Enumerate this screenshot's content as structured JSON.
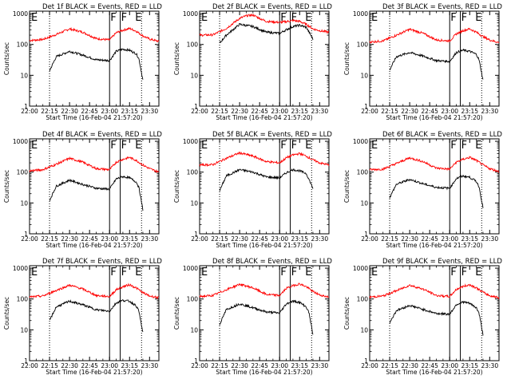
{
  "chart_data": [
    {
      "panel": 1,
      "type": "line",
      "title": "Det 1f BLACK = Events, RED = LLD",
      "xlabel": "Start Time (16-Feb-04 21:57:20)",
      "ylabel": "Counts/sec",
      "yscale": "log",
      "ylim": [
        1,
        1200
      ],
      "xlim": [
        "22:00",
        "23:37"
      ],
      "x_ticks": [
        "22:00",
        "22:15",
        "22:30",
        "22:45",
        "23:00",
        "23:15",
        "23:30"
      ],
      "y_ticks": [
        "1",
        "10",
        "100",
        "1000"
      ],
      "flags": [
        "E",
        "F",
        "F",
        "E"
      ],
      "series": [
        {
          "name": "LLD",
          "color": "#ff0000",
          "x": [
            "22:00",
            "22:10",
            "22:20",
            "22:30",
            "22:40",
            "22:50",
            "23:00",
            "23:05",
            "23:10",
            "23:15",
            "23:20",
            "23:25",
            "23:30",
            "23:37"
          ],
          "values": [
            135,
            145,
            210,
            320,
            250,
            155,
            140,
            240,
            290,
            330,
            270,
            190,
            150,
            125
          ]
        },
        {
          "name": "Events",
          "color": "#000000",
          "x": [
            "22:15",
            "22:20",
            "22:30",
            "22:40",
            "22:50",
            "23:00",
            "23:05",
            "23:10",
            "23:15",
            "23:20",
            "23:22",
            "23:25"
          ],
          "values": [
            14,
            40,
            60,
            45,
            32,
            30,
            60,
            70,
            65,
            50,
            35,
            7
          ]
        }
      ]
    },
    {
      "panel": 2,
      "type": "line",
      "title": "Det 2f BLACK = Events, RED = LLD",
      "xlabel": "Start Time (16-Feb-04 21:57:20)",
      "ylabel": "Counts/sec",
      "yscale": "log",
      "ylim": [
        1,
        1200
      ],
      "xlim": [
        "22:00",
        "23:37"
      ],
      "x_ticks": [
        "22:00",
        "22:15",
        "22:30",
        "22:45",
        "23:00",
        "23:15",
        "23:30"
      ],
      "y_ticks": [
        "1",
        "10",
        "100",
        "1000"
      ],
      "flags": [
        "E",
        "F",
        "F",
        "E"
      ],
      "series": [
        {
          "name": "LLD",
          "color": "#ff0000",
          "x": [
            "22:00",
            "22:10",
            "22:20",
            "22:30",
            "22:35",
            "22:40",
            "22:45",
            "22:50",
            "23:00",
            "23:05",
            "23:10",
            "23:15",
            "23:20",
            "23:25",
            "23:30",
            "23:37"
          ],
          "values": [
            200,
            205,
            330,
            700,
            850,
            900,
            700,
            560,
            520,
            550,
            600,
            560,
            450,
            320,
            280,
            250
          ]
        },
        {
          "name": "Events",
          "color": "#000000",
          "x": [
            "22:15",
            "22:20",
            "22:30",
            "22:40",
            "22:50",
            "23:00",
            "23:05",
            "23:10",
            "23:15",
            "23:20",
            "23:25"
          ],
          "values": [
            110,
            200,
            450,
            380,
            250,
            230,
            300,
            380,
            420,
            360,
            150
          ]
        }
      ]
    },
    {
      "panel": 3,
      "type": "line",
      "title": "Det 3f BLACK = Events, RED = LLD",
      "xlabel": "Start Time (16-Feb-04 21:57:20)",
      "ylabel": "Counts/sec",
      "yscale": "log",
      "ylim": [
        1,
        1200
      ],
      "xlim": [
        "22:00",
        "23:37"
      ],
      "x_ticks": [
        "22:00",
        "22:15",
        "22:30",
        "22:45",
        "23:00",
        "23:15",
        "23:30"
      ],
      "y_ticks": [
        "1",
        "10",
        "100",
        "1000"
      ],
      "flags": [
        "E",
        "F",
        "F",
        "E"
      ],
      "series": [
        {
          "name": "LLD",
          "color": "#ff0000",
          "x": [
            "22:00",
            "22:10",
            "22:20",
            "22:30",
            "22:40",
            "22:50",
            "23:00",
            "23:05",
            "23:10",
            "23:15",
            "23:20",
            "23:25",
            "23:30",
            "23:37"
          ],
          "values": [
            120,
            130,
            200,
            310,
            230,
            140,
            130,
            220,
            280,
            320,
            250,
            180,
            140,
            115
          ]
        },
        {
          "name": "Events",
          "color": "#000000",
          "x": [
            "22:15",
            "22:20",
            "22:30",
            "22:40",
            "22:50",
            "23:00",
            "23:05",
            "23:10",
            "23:15",
            "23:20",
            "23:22",
            "23:25"
          ],
          "values": [
            15,
            40,
            55,
            42,
            30,
            28,
            55,
            65,
            60,
            48,
            32,
            7
          ]
        }
      ]
    },
    {
      "panel": 4,
      "type": "line",
      "title": "Det 4f BLACK = Events, RED = LLD",
      "xlabel": "Start Time (16-Feb-04 21:57:20)",
      "ylabel": "Counts/sec",
      "yscale": "log",
      "ylim": [
        1,
        1200
      ],
      "xlim": [
        "22:00",
        "23:37"
      ],
      "x_ticks": [
        "22:00",
        "22:15",
        "22:30",
        "22:45",
        "23:00",
        "23:15",
        "23:30"
      ],
      "y_ticks": [
        "1",
        "10",
        "100",
        "1000"
      ],
      "flags": [
        "E",
        "F",
        "F",
        "E"
      ],
      "series": [
        {
          "name": "LLD",
          "color": "#ff0000",
          "x": [
            "22:00",
            "22:10",
            "22:20",
            "22:30",
            "22:40",
            "22:50",
            "23:00",
            "23:05",
            "23:10",
            "23:15",
            "23:20",
            "23:25",
            "23:30",
            "23:37"
          ],
          "values": [
            110,
            120,
            180,
            280,
            210,
            130,
            120,
            210,
            260,
            300,
            240,
            170,
            130,
            100
          ]
        },
        {
          "name": "Events",
          "color": "#000000",
          "x": [
            "22:15",
            "22:20",
            "22:30",
            "22:40",
            "22:50",
            "23:00",
            "23:05",
            "23:10",
            "23:15",
            "23:20",
            "23:22",
            "23:25"
          ],
          "values": [
            12,
            35,
            55,
            40,
            30,
            28,
            60,
            72,
            65,
            48,
            32,
            6
          ]
        }
      ]
    },
    {
      "panel": 5,
      "type": "line",
      "title": "Det 5f BLACK = Events, RED = LLD",
      "xlabel": "Start Time (16-Feb-04 21:57:20)",
      "ylabel": "Counts/sec",
      "yscale": "log",
      "ylim": [
        1,
        1200
      ],
      "xlim": [
        "22:00",
        "23:37"
      ],
      "x_ticks": [
        "22:00",
        "22:15",
        "22:30",
        "22:45",
        "23:00",
        "23:15",
        "23:30"
      ],
      "y_ticks": [
        "1",
        "10",
        "100",
        "1000"
      ],
      "flags": [
        "E",
        "F",
        "F",
        "E"
      ],
      "series": [
        {
          "name": "LLD",
          "color": "#ff0000",
          "x": [
            "22:00",
            "22:10",
            "22:20",
            "22:30",
            "22:40",
            "22:50",
            "23:00",
            "23:05",
            "23:10",
            "23:15",
            "23:20",
            "23:25",
            "23:30",
            "23:37"
          ],
          "values": [
            170,
            175,
            280,
            420,
            330,
            220,
            200,
            290,
            360,
            400,
            330,
            250,
            200,
            170
          ]
        },
        {
          "name": "Events",
          "color": "#000000",
          "x": [
            "22:15",
            "22:20",
            "22:30",
            "22:40",
            "22:50",
            "23:00",
            "23:05",
            "23:10",
            "23:15",
            "23:20",
            "23:25"
          ],
          "values": [
            25,
            75,
            120,
            100,
            70,
            65,
            95,
            120,
            110,
            90,
            30
          ]
        }
      ]
    },
    {
      "panel": 6,
      "type": "line",
      "title": "Det 6f BLACK = Events, RED = LLD",
      "xlabel": "Start Time (16-Feb-04 21:57:20)",
      "ylabel": "Counts/sec",
      "yscale": "log",
      "ylim": [
        1,
        1200
      ],
      "xlim": [
        "22:00",
        "23:37"
      ],
      "x_ticks": [
        "22:00",
        "22:15",
        "22:30",
        "22:45",
        "23:00",
        "23:15",
        "23:30"
      ],
      "y_ticks": [
        "1",
        "10",
        "100",
        "1000"
      ],
      "flags": [
        "E",
        "F",
        "F",
        "E"
      ],
      "series": [
        {
          "name": "LLD",
          "color": "#ff0000",
          "x": [
            "22:00",
            "22:10",
            "22:20",
            "22:30",
            "22:40",
            "22:50",
            "23:00",
            "23:05",
            "23:10",
            "23:15",
            "23:20",
            "23:25",
            "23:30",
            "23:37"
          ],
          "values": [
            120,
            125,
            190,
            290,
            220,
            135,
            125,
            210,
            260,
            300,
            240,
            170,
            130,
            105
          ]
        },
        {
          "name": "Events",
          "color": "#000000",
          "x": [
            "22:15",
            "22:20",
            "22:30",
            "22:40",
            "22:50",
            "23:00",
            "23:05",
            "23:10",
            "23:15",
            "23:20",
            "23:22",
            "23:25"
          ],
          "values": [
            15,
            40,
            58,
            42,
            32,
            30,
            62,
            75,
            68,
            50,
            34,
            7
          ]
        }
      ]
    },
    {
      "panel": 7,
      "type": "line",
      "title": "Det 7f BLACK = Events, RED = LLD",
      "xlabel": "Start Time (16-Feb-04 21:57:20)",
      "ylabel": "Counts/sec",
      "yscale": "log",
      "ylim": [
        1,
        1200
      ],
      "xlim": [
        "22:00",
        "23:37"
      ],
      "x_ticks": [
        "22:00",
        "22:15",
        "22:30",
        "22:45",
        "23:00",
        "23:15",
        "23:30"
      ],
      "y_ticks": [
        "1",
        "10",
        "100",
        "1000"
      ],
      "flags": [
        "E",
        "F",
        "F",
        "E"
      ],
      "series": [
        {
          "name": "LLD",
          "color": "#ff0000",
          "x": [
            "22:00",
            "22:10",
            "22:20",
            "22:30",
            "22:40",
            "22:50",
            "23:00",
            "23:05",
            "23:10",
            "23:15",
            "23:20",
            "23:25",
            "23:30",
            "23:37"
          ],
          "values": [
            115,
            125,
            190,
            280,
            210,
            130,
            120,
            200,
            250,
            290,
            230,
            160,
            125,
            110
          ]
        },
        {
          "name": "Events",
          "color": "#000000",
          "x": [
            "22:15",
            "22:20",
            "22:30",
            "22:40",
            "22:50",
            "23:00",
            "23:05",
            "23:10",
            "23:15",
            "23:20",
            "23:22",
            "23:25"
          ],
          "values": [
            20,
            55,
            85,
            65,
            45,
            40,
            75,
            90,
            85,
            60,
            40,
            8
          ]
        }
      ]
    },
    {
      "panel": 8,
      "type": "line",
      "title": "Det 8f BLACK = Events, RED = LLD",
      "xlabel": "Start Time (16-Feb-04 21:57:20)",
      "ylabel": "Counts/sec",
      "yscale": "log",
      "ylim": [
        1,
        1200
      ],
      "xlim": [
        "22:00",
        "23:37"
      ],
      "x_ticks": [
        "22:00",
        "22:15",
        "22:30",
        "22:45",
        "23:00",
        "23:15",
        "23:30"
      ],
      "y_ticks": [
        "1",
        "10",
        "100",
        "1000"
      ],
      "flags": [
        "E",
        "F",
        "F",
        "E"
      ],
      "series": [
        {
          "name": "LLD",
          "color": "#ff0000",
          "x": [
            "22:00",
            "22:10",
            "22:20",
            "22:30",
            "22:40",
            "22:50",
            "23:00",
            "23:05",
            "23:10",
            "23:15",
            "23:20",
            "23:25",
            "23:30",
            "23:37"
          ],
          "values": [
            120,
            130,
            200,
            300,
            230,
            140,
            130,
            220,
            270,
            310,
            250,
            175,
            135,
            115
          ]
        },
        {
          "name": "Events",
          "color": "#000000",
          "x": [
            "22:15",
            "22:20",
            "22:30",
            "22:40",
            "22:50",
            "23:00",
            "23:05",
            "23:10",
            "23:15",
            "23:20",
            "23:22",
            "23:25"
          ],
          "values": [
            15,
            45,
            70,
            52,
            38,
            35,
            70,
            85,
            78,
            55,
            36,
            7
          ]
        }
      ]
    },
    {
      "panel": 9,
      "type": "line",
      "title": "Det 9f BLACK = Events, RED = LLD",
      "xlabel": "Start Time (16-Feb-04 21:57:20)",
      "ylabel": "Counts/sec",
      "yscale": "log",
      "ylim": [
        1,
        1200
      ],
      "xlim": [
        "22:00",
        "23:37"
      ],
      "x_ticks": [
        "22:00",
        "22:15",
        "22:30",
        "22:45",
        "23:00",
        "23:15",
        "23:30"
      ],
      "y_ticks": [
        "1",
        "10",
        "100",
        "1000"
      ],
      "flags": [
        "E",
        "F",
        "F",
        "E"
      ],
      "series": [
        {
          "name": "LLD",
          "color": "#ff0000",
          "x": [
            "22:00",
            "22:10",
            "22:20",
            "22:30",
            "22:40",
            "22:50",
            "23:00",
            "23:05",
            "23:10",
            "23:15",
            "23:20",
            "23:25",
            "23:30",
            "23:37"
          ],
          "values": [
            115,
            125,
            185,
            280,
            210,
            130,
            120,
            205,
            255,
            290,
            230,
            165,
            128,
            110
          ]
        },
        {
          "name": "Events",
          "color": "#000000",
          "x": [
            "22:15",
            "22:20",
            "22:30",
            "22:40",
            "22:50",
            "23:00",
            "23:05",
            "23:10",
            "23:15",
            "23:20",
            "23:22",
            "23:25"
          ],
          "values": [
            17,
            42,
            62,
            46,
            34,
            32,
            66,
            80,
            72,
            52,
            35,
            7
          ]
        }
      ]
    }
  ],
  "markers": {
    "dotted_times": [
      "22:15",
      "23:24"
    ],
    "solid_times": [
      "23:00",
      "23:08"
    ]
  }
}
